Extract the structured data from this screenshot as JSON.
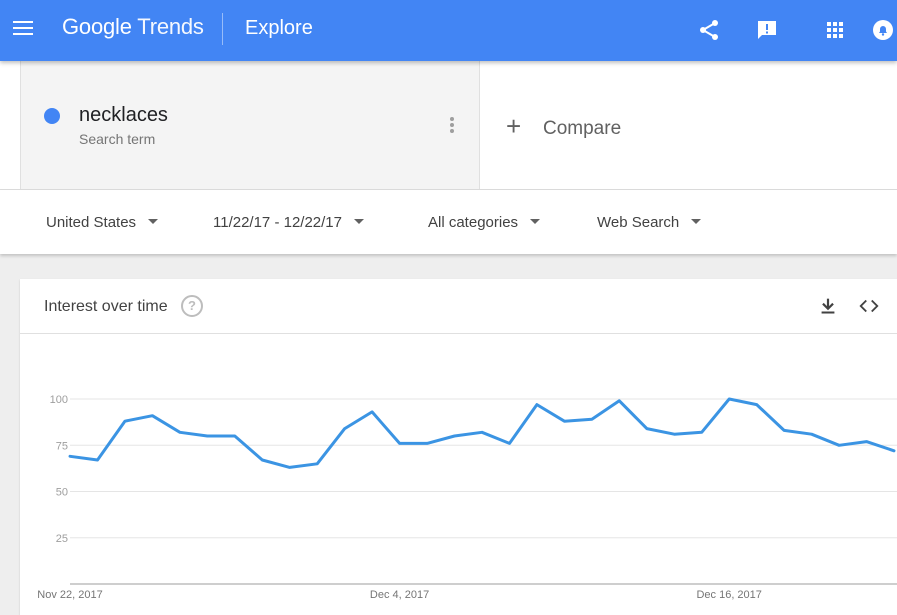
{
  "header": {
    "logo_google": "Google",
    "logo_trends": "Trends",
    "title": "Explore",
    "icons": [
      "menu-icon",
      "share-icon",
      "feedback-icon",
      "apps-icon",
      "notifications-icon"
    ]
  },
  "search_term": {
    "name": "necklaces",
    "type": "Search term",
    "color": "#4285f4",
    "compare_label": "Compare"
  },
  "filters": {
    "region": "United States",
    "date_range": "11/22/17 - 12/22/17",
    "category": "All categories",
    "search_type": "Web Search"
  },
  "card": {
    "title": "Interest over time",
    "icons": [
      "help-icon",
      "download-icon",
      "embed-icon"
    ]
  },
  "chart_data": {
    "type": "line",
    "series": [
      {
        "name": "necklaces",
        "color": "#3b94e3",
        "values": [
          69,
          67,
          88,
          91,
          82,
          80,
          80,
          67,
          63,
          65,
          84,
          93,
          76,
          76,
          80,
          82,
          76,
          97,
          88,
          89,
          99,
          84,
          81,
          82,
          100,
          97,
          83,
          81,
          75,
          77,
          72
        ]
      }
    ],
    "x": [
      "Nov 22, 2017",
      "Nov 23, 2017",
      "Nov 24, 2017",
      "Nov 25, 2017",
      "Nov 26, 2017",
      "Nov 27, 2017",
      "Nov 28, 2017",
      "Nov 29, 2017",
      "Nov 30, 2017",
      "Dec 1, 2017",
      "Dec 2, 2017",
      "Dec 3, 2017",
      "Dec 4, 2017",
      "Dec 5, 2017",
      "Dec 6, 2017",
      "Dec 7, 2017",
      "Dec 8, 2017",
      "Dec 9, 2017",
      "Dec 10, 2017",
      "Dec 11, 2017",
      "Dec 12, 2017",
      "Dec 13, 2017",
      "Dec 14, 2017",
      "Dec 15, 2017",
      "Dec 16, 2017",
      "Dec 17, 2017",
      "Dec 18, 2017",
      "Dec 19, 2017",
      "Dec 20, 2017",
      "Dec 21, 2017",
      "Dec 22, 2017"
    ],
    "x_tick_labels": [
      "Nov 22, 2017",
      "Dec 4, 2017",
      "Dec 16, 2017"
    ],
    "y_ticks": [
      25,
      50,
      75,
      100
    ],
    "ylim": [
      0,
      100
    ],
    "grid": true,
    "title": "",
    "xlabel": "",
    "ylabel": ""
  }
}
